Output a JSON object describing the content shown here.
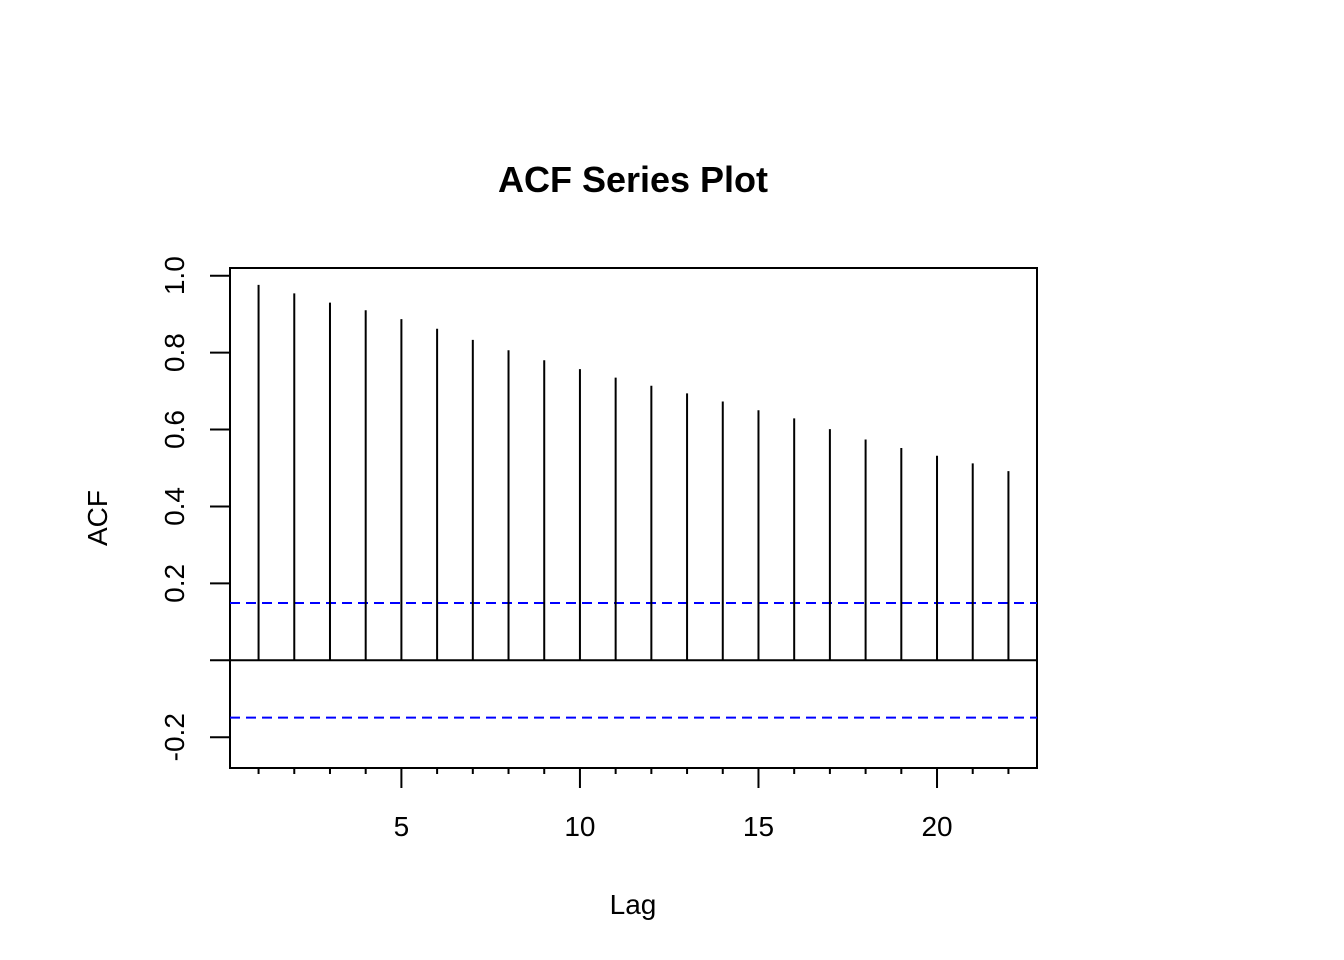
{
  "chart_data": {
    "type": "bar",
    "title": "ACF Series Plot",
    "xlabel": "Lag",
    "ylabel": "ACF",
    "x": [
      1,
      2,
      3,
      4,
      5,
      6,
      7,
      8,
      9,
      10,
      11,
      12,
      13,
      14,
      15,
      16,
      17,
      18,
      19,
      20,
      21,
      22
    ],
    "values": [
      0.976,
      0.954,
      0.93,
      0.91,
      0.887,
      0.862,
      0.833,
      0.806,
      0.78,
      0.757,
      0.735,
      0.714,
      0.694,
      0.673,
      0.65,
      0.629,
      0.601,
      0.574,
      0.552,
      0.532,
      0.512,
      0.492
    ],
    "xlim": [
      0.2,
      22.8
    ],
    "ylim": [
      -0.28,
      1.02
    ],
    "x_ticks": [
      5,
      10,
      15,
      20
    ],
    "x_minor_ticks": [
      1,
      2,
      3,
      4,
      5,
      6,
      7,
      8,
      9,
      10,
      11,
      12,
      13,
      14,
      15,
      16,
      17,
      18,
      19,
      20,
      21,
      22
    ],
    "y_ticks": [
      -0.2,
      0.2,
      0.4,
      0.6,
      0.8,
      1.0
    ],
    "y_tick_labels": [
      "-0.2",
      "0.2",
      "0.4",
      "0.6",
      "0.8",
      "1.0"
    ],
    "confidence_bounds": [
      0.149,
      -0.149
    ],
    "zero_line": 0,
    "grid": false,
    "colors": {
      "bars": "#000000",
      "confidence": "#0000ff",
      "frame": "#000000"
    }
  }
}
